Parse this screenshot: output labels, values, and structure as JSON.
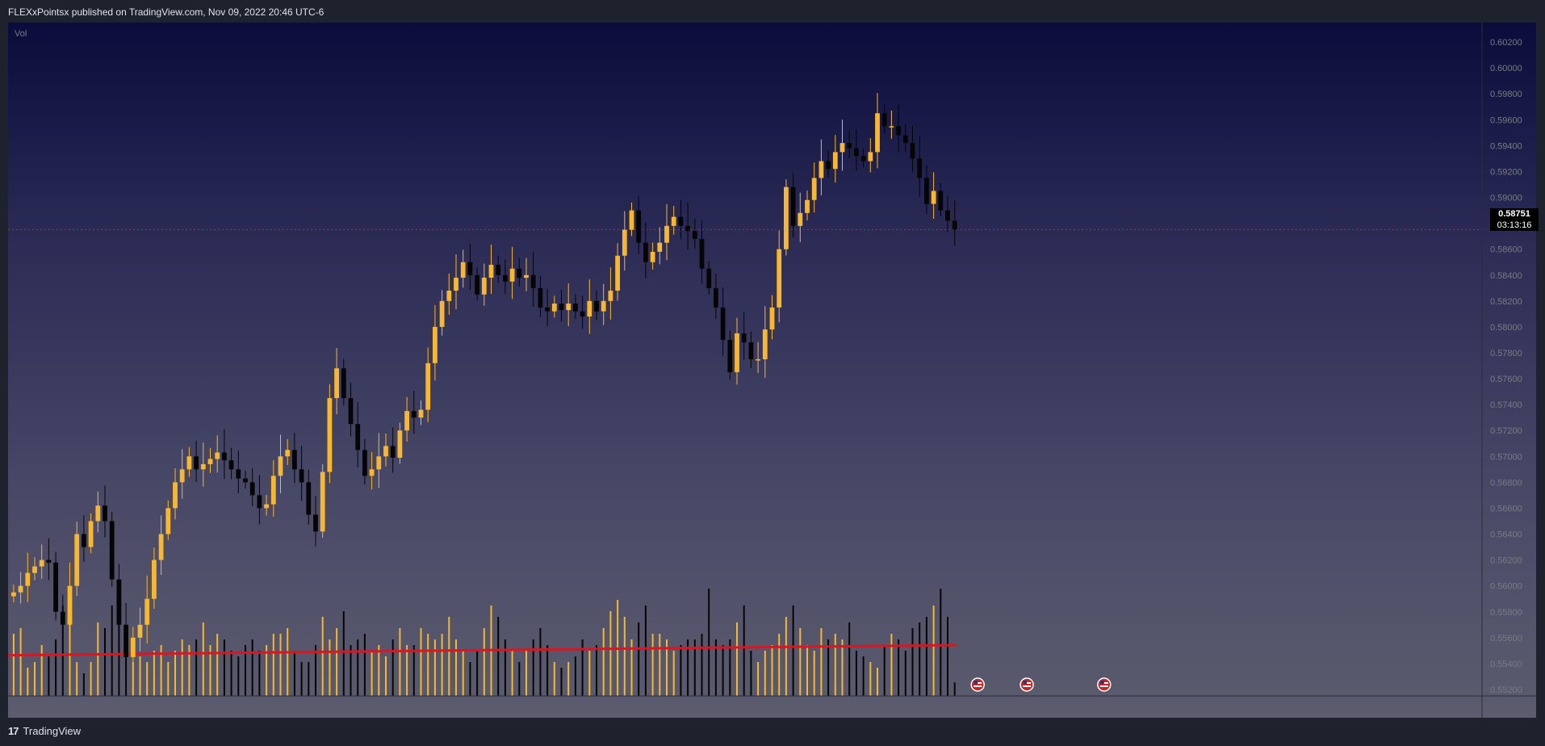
{
  "header": {
    "text": "FLEXxPointsx published on TradingView.com, Nov 09, 2022 20:46 UTC-6"
  },
  "footer": {
    "brand": "TradingView",
    "logo_glyph": "17"
  },
  "volume_label": "Vol",
  "current_price": {
    "price": "0.58751",
    "countdown": "03:13:16"
  },
  "colors": {
    "up": "#f7b731",
    "down": "#050505",
    "volume_ma": "#e0141e",
    "price_line": "#e0141e",
    "axis_text": "#787b86"
  },
  "event_markers": [
    {
      "icon": "us-flag-icon",
      "bar_offset": 2
    },
    {
      "icon": "us-flag-icon",
      "bar_offset": 9
    },
    {
      "icon": "us-flag-icon",
      "bar_offset": 20
    }
  ],
  "chart_data": {
    "type": "candlestick",
    "y_ticks": [
      "0.60200",
      "0.60000",
      "0.59800",
      "0.59600",
      "0.59400",
      "0.59200",
      "0.59000",
      "0.58800",
      "0.58600",
      "0.58400",
      "0.58200",
      "0.58000",
      "0.57800",
      "0.57600",
      "0.57400",
      "0.57200",
      "0.57000",
      "0.56800",
      "0.56600",
      "0.56400",
      "0.56200",
      "0.56000",
      "0.55800",
      "0.55600",
      "0.55400",
      "0.55200"
    ],
    "ylim": [
      0.5515,
      0.6035
    ],
    "price_line": 0.58751,
    "start_close": 0.5592,
    "closes": [
      0.5595,
      0.56,
      0.561,
      0.5615,
      0.562,
      0.5618,
      0.558,
      0.557,
      0.56,
      0.564,
      0.563,
      0.565,
      0.5662,
      0.565,
      0.5605,
      0.557,
      0.5545,
      0.556,
      0.557,
      0.559,
      0.562,
      0.564,
      0.566,
      0.568,
      0.569,
      0.57,
      0.569,
      0.5694,
      0.5698,
      0.5703,
      0.5697,
      0.569,
      0.5683,
      0.568,
      0.567,
      0.566,
      0.5663,
      0.5685,
      0.57,
      0.5705,
      0.569,
      0.568,
      0.5655,
      0.5642,
      0.5688,
      0.5745,
      0.5768,
      0.5745,
      0.5725,
      0.5705,
      0.5685,
      0.569,
      0.57,
      0.5708,
      0.5699,
      0.572,
      0.5735,
      0.573,
      0.5736,
      0.5772,
      0.58,
      0.582,
      0.5828,
      0.5838,
      0.585,
      0.584,
      0.5825,
      0.5838,
      0.5848,
      0.584,
      0.5835,
      0.5845,
      0.5838,
      0.584,
      0.583,
      0.5815,
      0.5812,
      0.5818,
      0.5813,
      0.5818,
      0.5812,
      0.5808,
      0.582,
      0.5812,
      0.582,
      0.5828,
      0.5855,
      0.5875,
      0.589,
      0.5865,
      0.585,
      0.5858,
      0.5865,
      0.5878,
      0.5885,
      0.5878,
      0.5874,
      0.5868,
      0.5845,
      0.583,
      0.5815,
      0.579,
      0.5765,
      0.5795,
      0.5788,
      0.5775,
      0.5775,
      0.5798,
      0.5815,
      0.586,
      0.5908,
      0.5878,
      0.5888,
      0.5898,
      0.5915,
      0.5928,
      0.5922,
      0.5935,
      0.5942,
      0.5938,
      0.5932,
      0.5928,
      0.5935,
      0.5965,
      0.5955,
      0.5955,
      0.5948,
      0.5942,
      0.593,
      0.5915,
      0.5895,
      0.5905,
      0.589,
      0.5882,
      0.58751
    ],
    "volumes": [
      55,
      60,
      25,
      30,
      45,
      35,
      50,
      80,
      75,
      30,
      20,
      30,
      65,
      60,
      80,
      75,
      45,
      30,
      35,
      30,
      40,
      45,
      30,
      40,
      50,
      45,
      50,
      65,
      45,
      55,
      50,
      40,
      35,
      45,
      50,
      40,
      45,
      55,
      55,
      60,
      40,
      30,
      30,
      45,
      70,
      50,
      60,
      75,
      45,
      50,
      55,
      40,
      45,
      35,
      50,
      60,
      45,
      45,
      60,
      55,
      50,
      55,
      70,
      50,
      40,
      30,
      40,
      60,
      80,
      70,
      50,
      40,
      30,
      40,
      50,
      60,
      45,
      30,
      25,
      30,
      35,
      50,
      40,
      45,
      60,
      75,
      85,
      70,
      50,
      65,
      80,
      55,
      55,
      50,
      40,
      45,
      50,
      50,
      55,
      95,
      50,
      45,
      50,
      65,
      80,
      40,
      30,
      40,
      45,
      55,
      70,
      80,
      60,
      45,
      40,
      60,
      50,
      55,
      50,
      65,
      40,
      35,
      30,
      25,
      45,
      55,
      50,
      40,
      60,
      65,
      70,
      80,
      95,
      70,
      12
    ],
    "volume_ma_start": 36,
    "volume_ma_end": 45
  }
}
